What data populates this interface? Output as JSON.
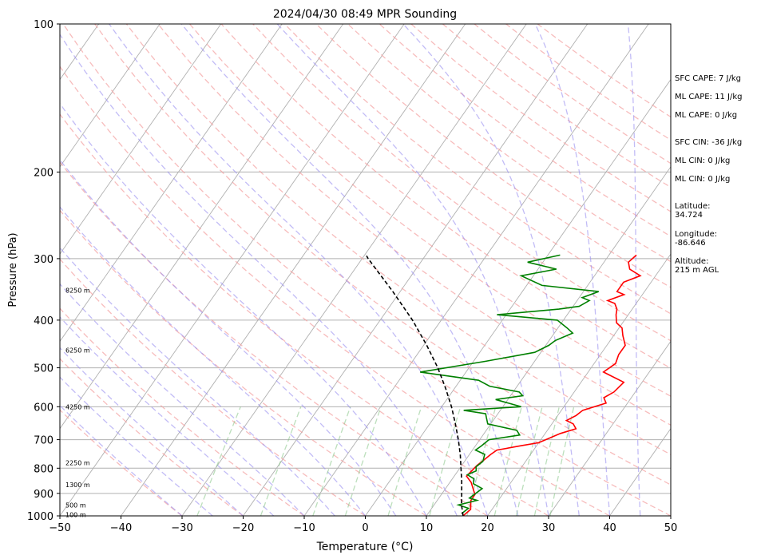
{
  "chart_data": {
    "type": "line",
    "title": "2024/04/30 08:49 MPR Sounding",
    "xlabel": "Temperature (°C)",
    "ylabel": "Pressure (hPa)",
    "xlim": [
      -50,
      50
    ],
    "ylim": [
      1000,
      100
    ],
    "y_scale": "log",
    "x_ticks": [
      "−50",
      "−40",
      "−30",
      "−20",
      "−10",
      "0",
      "10",
      "20",
      "30",
      "40",
      "50"
    ],
    "y_ticks": [
      "1000",
      "900",
      "800",
      "700",
      "600",
      "500",
      "400",
      "300",
      "200",
      "100"
    ],
    "y_tick_values": [
      1000,
      900,
      800,
      700,
      600,
      500,
      400,
      300,
      200,
      100
    ],
    "grid": true,
    "height_labels": [
      {
        "label": "100 m",
        "p": 995
      },
      {
        "label": "500 m",
        "p": 950
      },
      {
        "label": "1300 m",
        "p": 865
      },
      {
        "label": "2250 m",
        "p": 780
      },
      {
        "label": "4250 m",
        "p": 600
      },
      {
        "label": "6250 m",
        "p": 460
      },
      {
        "label": "8250 m",
        "p": 348
      }
    ],
    "series": [
      {
        "kind": "temperature",
        "color": "#ff0000",
        "points": [
          [
            14.5,
            295
          ],
          [
            14.0,
            305
          ],
          [
            15.0,
            315
          ],
          [
            17.5,
            325
          ],
          [
            15.5,
            335
          ],
          [
            15.5,
            350
          ],
          [
            17.0,
            355
          ],
          [
            15.0,
            365
          ],
          [
            16.5,
            370
          ],
          [
            17.5,
            380
          ],
          [
            18.0,
            390
          ],
          [
            19.0,
            405
          ],
          [
            20.5,
            415
          ],
          [
            21.5,
            430
          ],
          [
            23.0,
            450
          ],
          [
            23.0,
            470
          ],
          [
            23.5,
            490
          ],
          [
            22.5,
            510
          ],
          [
            27.0,
            535
          ],
          [
            26.5,
            560
          ],
          [
            25.5,
            575
          ],
          [
            26.5,
            590
          ],
          [
            23.5,
            610
          ],
          [
            23.0,
            625
          ],
          [
            22.0,
            640
          ],
          [
            23.5,
            650
          ],
          [
            24.5,
            665
          ],
          [
            22.5,
            680
          ],
          [
            20.0,
            710
          ],
          [
            17.5,
            720
          ],
          [
            14.0,
            735
          ],
          [
            13.5,
            750
          ],
          [
            13.0,
            770
          ],
          [
            12.5,
            790
          ],
          [
            12.0,
            830
          ],
          [
            13.5,
            855
          ],
          [
            14.5,
            880
          ],
          [
            15.5,
            905
          ],
          [
            15.5,
            930
          ],
          [
            16.0,
            950
          ],
          [
            16.5,
            970
          ],
          [
            16.0,
            1000
          ]
        ]
      },
      {
        "kind": "dewpoint",
        "color": "#008000",
        "points": [
          [
            2.0,
            295
          ],
          [
            -2.5,
            305
          ],
          [
            3.0,
            315
          ],
          [
            -2.0,
            325
          ],
          [
            2.5,
            340
          ],
          [
            12.5,
            350
          ],
          [
            10.5,
            360
          ],
          [
            12.0,
            365
          ],
          [
            11.0,
            375
          ],
          [
            8.0,
            380
          ],
          [
            -1.5,
            390
          ],
          [
            9.0,
            400
          ],
          [
            11.5,
            415
          ],
          [
            13.0,
            425
          ],
          [
            11.0,
            440
          ],
          [
            10.5,
            450
          ],
          [
            9.0,
            465
          ],
          [
            2.0,
            485
          ],
          [
            -7.5,
            510
          ],
          [
            3.0,
            530
          ],
          [
            5.5,
            545
          ],
          [
            11.0,
            560
          ],
          [
            12.0,
            570
          ],
          [
            8.0,
            580
          ],
          [
            13.0,
            600
          ],
          [
            4.0,
            610
          ],
          [
            8.0,
            620
          ],
          [
            8.5,
            630
          ],
          [
            9.5,
            650
          ],
          [
            15.0,
            670
          ],
          [
            16.0,
            685
          ],
          [
            11.5,
            700
          ],
          [
            11.0,
            720
          ],
          [
            10.5,
            735
          ],
          [
            12.5,
            750
          ],
          [
            13.0,
            775
          ],
          [
            12.5,
            795
          ],
          [
            13.0,
            810
          ],
          [
            12.0,
            825
          ],
          [
            13.5,
            840
          ],
          [
            14.0,
            860
          ],
          [
            15.0,
            870
          ],
          [
            16.0,
            880
          ],
          [
            15.5,
            900
          ],
          [
            15.0,
            920
          ],
          [
            16.5,
            930
          ],
          [
            14.0,
            950
          ],
          [
            16.0,
            965
          ],
          [
            15.5,
            990
          ]
        ]
      },
      {
        "kind": "parcel",
        "color": "#000000",
        "points": [
          [
            16.0,
            1000
          ],
          [
            14.5,
            950
          ],
          [
            13.2,
            900
          ],
          [
            11.8,
            850
          ],
          [
            10.2,
            800
          ],
          [
            8.5,
            750
          ],
          [
            6.5,
            700
          ],
          [
            4.2,
            650
          ],
          [
            1.6,
            600
          ],
          [
            -1.5,
            550
          ],
          [
            -5.1,
            500
          ],
          [
            -9.5,
            450
          ],
          [
            -14.7,
            400
          ],
          [
            -21.2,
            350
          ],
          [
            -29.0,
            300
          ],
          [
            -29.6,
            296
          ]
        ]
      }
    ]
  },
  "side": {
    "sfc_cape": "SFC CAPE: 7 J/kg",
    "ml_cape_1": "ML CAPE: 11 J/kg",
    "ml_cape_2": "ML CAPE: 0 J/kg",
    "sfc_cin": "SFC CIN: -36 J/kg",
    "ml_cin_1": "ML CIN: 0 J/kg",
    "ml_cin_2": "ML CIN: 0 J/kg",
    "latitude": "Latitude:\n34.724",
    "longitude": "Longitude:\n-86.646",
    "altitude": "Altitude:\n215 m AGL"
  }
}
